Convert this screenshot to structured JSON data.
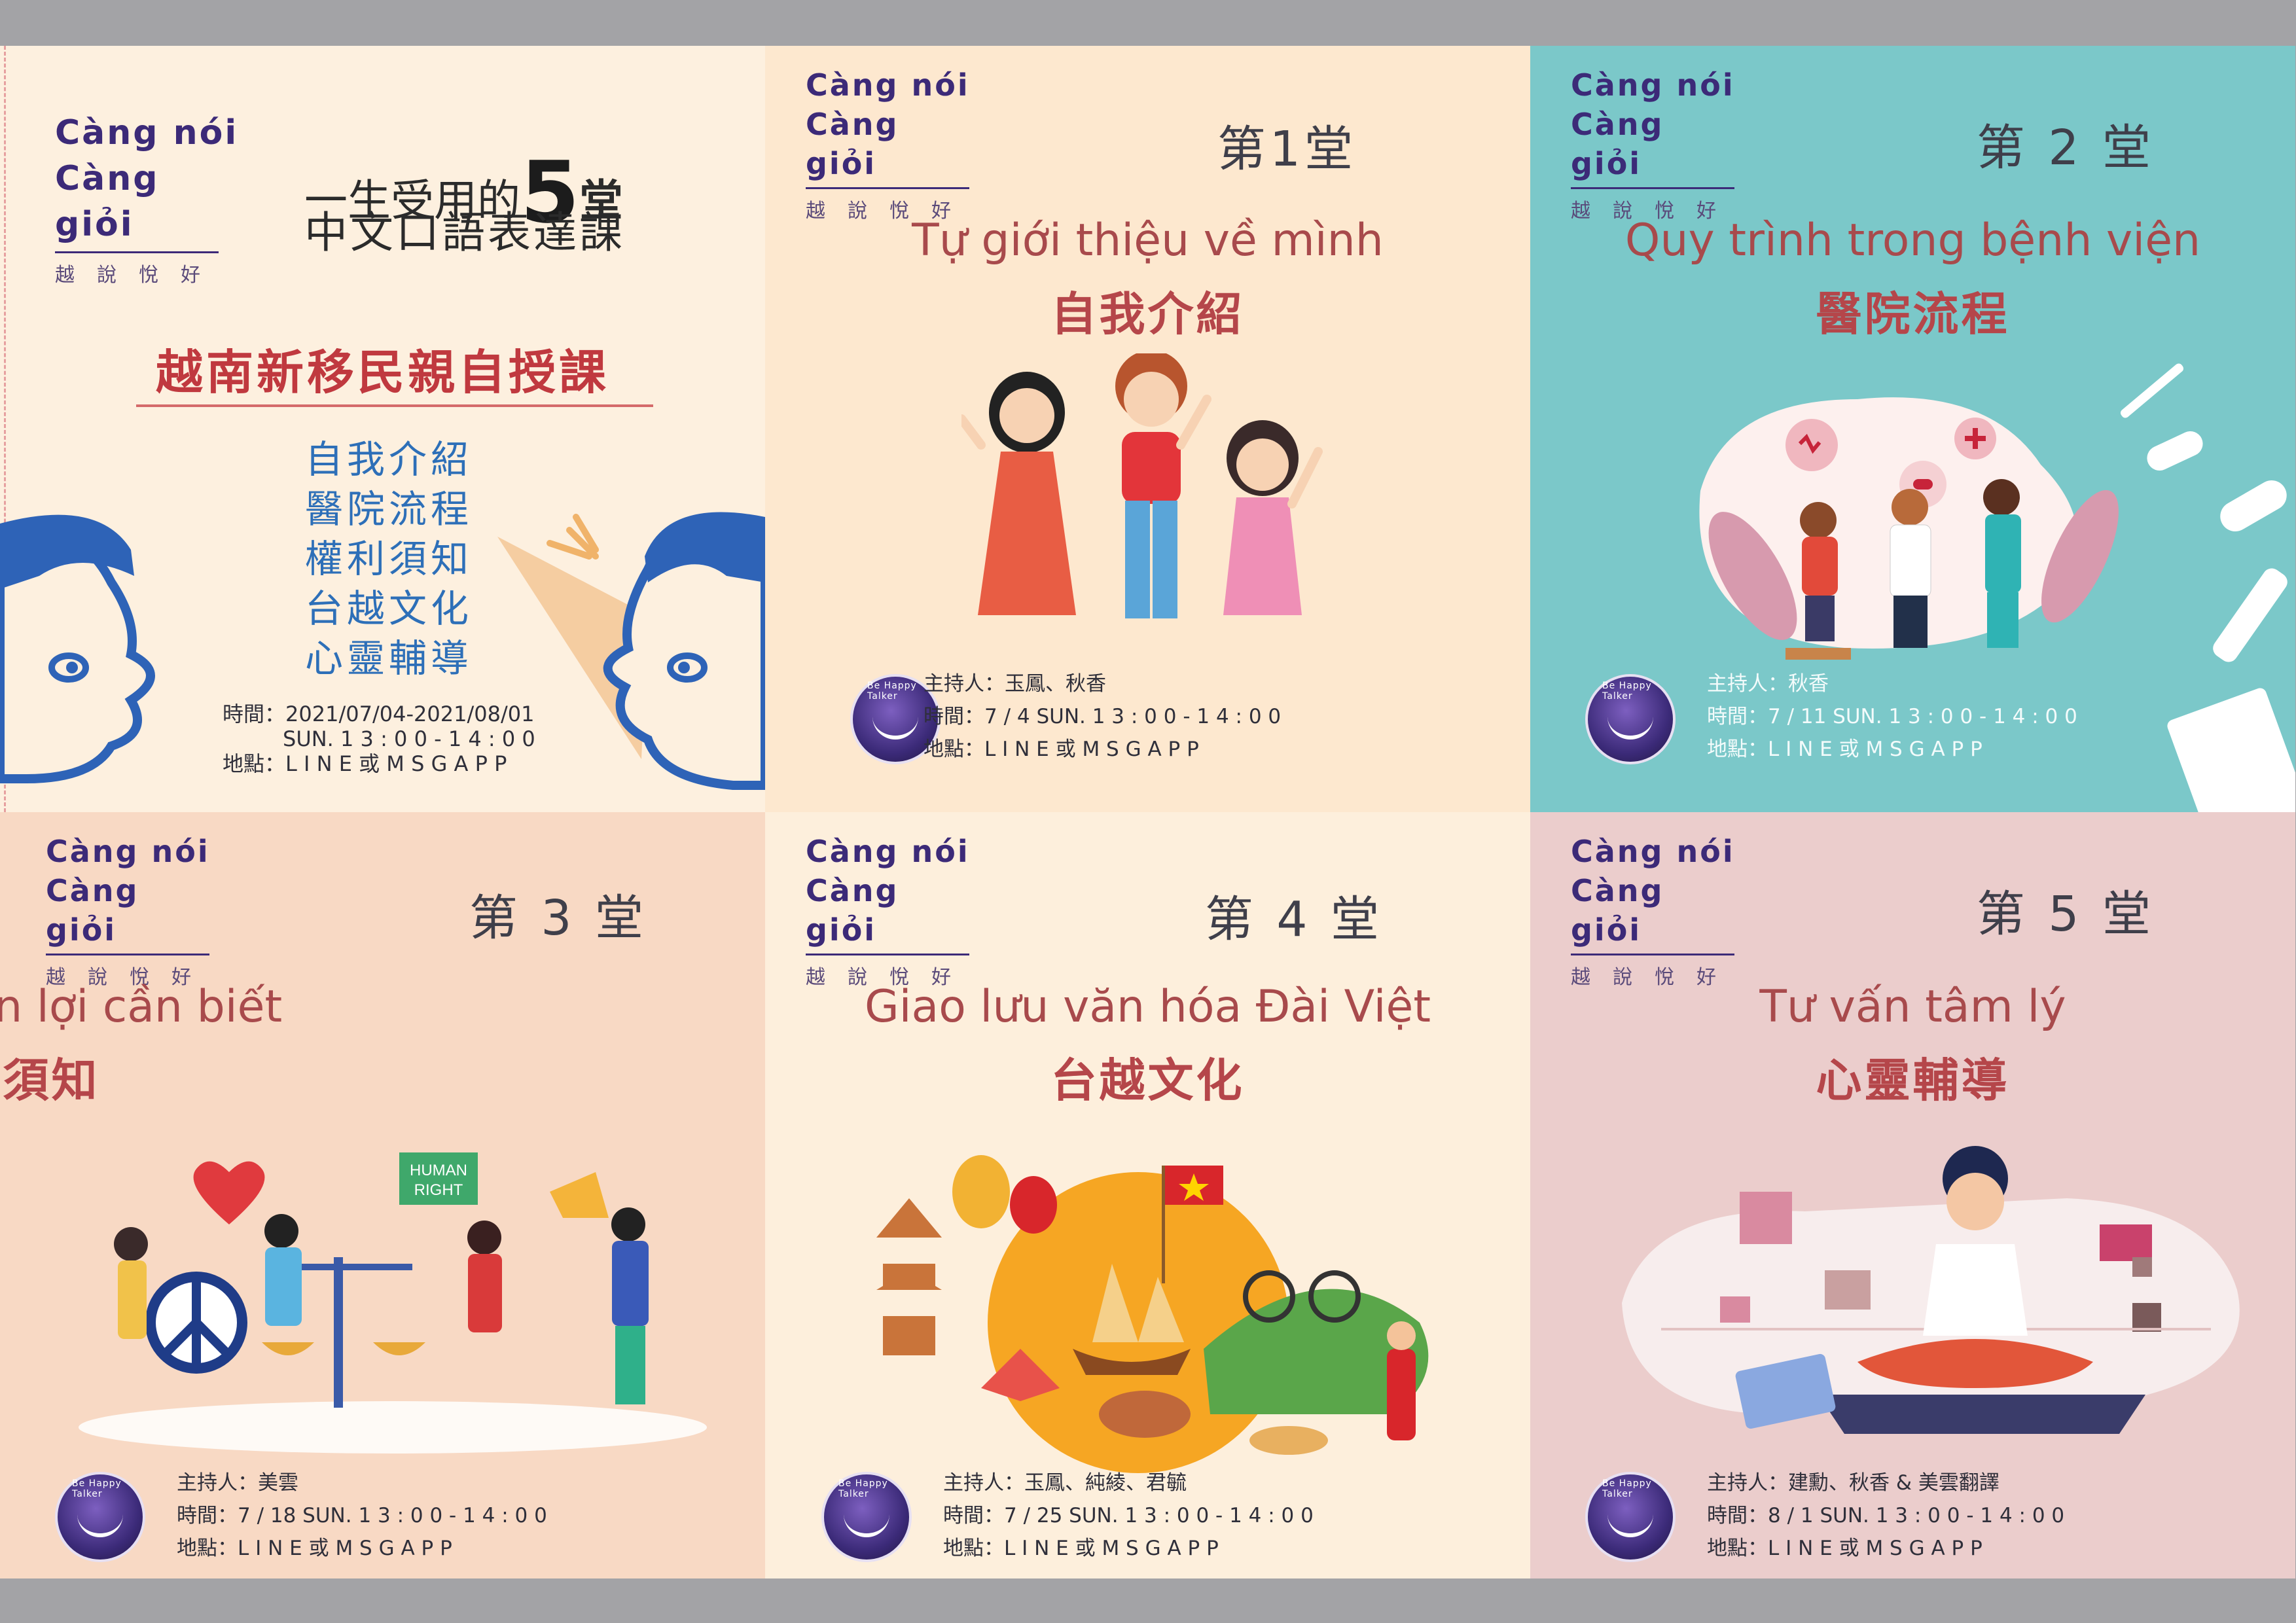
{
  "brand": {
    "line1": "Càng nói",
    "line2": "Càng giỏi",
    "sub": "越說悅好"
  },
  "intro": {
    "title_pre": "一生受用的",
    "title_num": "5",
    "title_post": "堂",
    "title_line2": "中文口語表達課",
    "headline": "越南新移民親自授課",
    "topics": [
      "自我介紹",
      "醫院流程",
      "權利須知",
      "台越文化",
      "心靈輔導"
    ],
    "time_label": "時間：",
    "time_value": "2021/07/04-2021/08/01",
    "time_value2": "SUN. 1 3 : 0 0 - 1 4 : 0 0",
    "place_label": "地點：",
    "place_value": "L I N E 或 M S G A P P"
  },
  "badge_text": "Be Happy Talker",
  "sessions": [
    {
      "session": "第1堂",
      "vn_title": "Tự giới thiệu về mình",
      "zh_title": "自我介紹",
      "host_label": "主持人：",
      "host": "玉鳳、秋香",
      "time_label": "時間：",
      "time": "7 / 4 SUN. 1 3 : 0 0 - 1 4 : 0 0",
      "place_label": "地點：",
      "place": "L I N E 或 M S G A P P"
    },
    {
      "session": "第 2 堂",
      "vn_title": "Quy trình trong bệnh viện",
      "zh_title": "醫院流程",
      "host_label": "主持人：",
      "host": "秋香",
      "time_label": "時間：",
      "time": "7 / 11 SUN. 1 3 : 0 0 - 1 4 : 0 0",
      "place_label": "地點：",
      "place": "L I N E 或 M S G A P P"
    },
    {
      "session": "第 3 堂",
      "vn_title": "Những quyền lợi cần biết",
      "zh_title": "權利須知",
      "host_label": "主持人：",
      "host": "美雲",
      "time_label": "時間：",
      "time": "7 / 18 SUN. 1 3 : 0 0 - 1 4 : 0 0",
      "place_label": "地點：",
      "place": "L I N E 或 M S G A P P",
      "sign_text": "HUMAN RIGHT"
    },
    {
      "session": "第 4 堂",
      "vn_title": "Giao lưu văn hóa Đài Việt",
      "zh_title": "台越文化",
      "host_label": "主持人：",
      "host": "玉鳳、純綾、君毓",
      "time_label": "時間：",
      "time": "7 / 25 SUN. 1 3 : 0 0 - 1 4 : 0 0",
      "place_label": "地點：",
      "place": "L I N E 或 M S G A P P"
    },
    {
      "session": "第 5 堂",
      "vn_title": "Tư vấn tâm lý",
      "zh_title": "心靈輔導",
      "host_label": "主持人：",
      "host": "建勳、秋香 & 美雲翻譯",
      "time_label": "時間：",
      "time": "8 / 1 SUN. 1 3 : 0 0 - 1 4 : 0 0",
      "place_label": "地點：",
      "place": "L I N E 或 M S G A P P"
    }
  ],
  "colors": {
    "brand": "#3c2a78",
    "title_red": "#b5464a",
    "topic_blue": "#2d6fb8",
    "teal": "#7bc8c9"
  }
}
